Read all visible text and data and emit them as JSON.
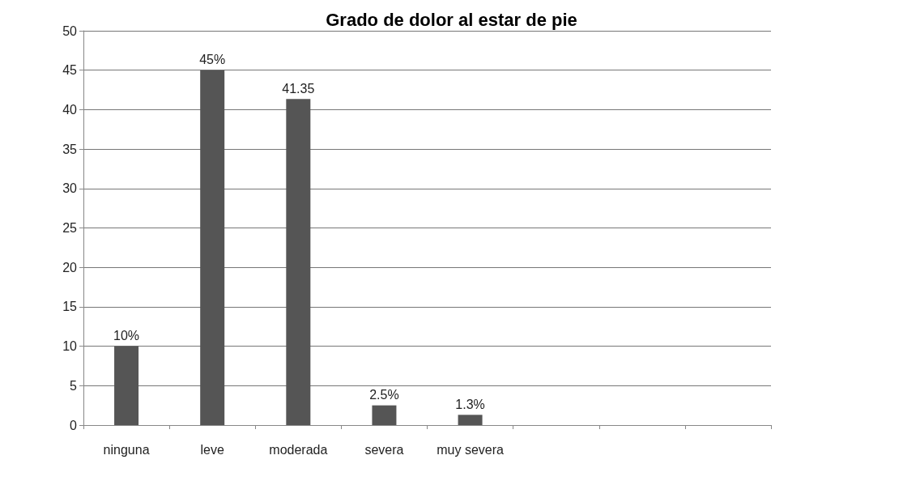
{
  "chart_data": {
    "type": "bar",
    "title": "Grado de dolor al estar de pie",
    "categories": [
      "ninguna",
      "leve",
      "moderada",
      "severa",
      "muy severa",
      null,
      null,
      null
    ],
    "values": [
      10,
      45,
      41.35,
      2.5,
      1.3,
      null,
      null,
      null
    ],
    "value_labels": [
      "10%",
      "45%",
      "41.35",
      "2.5%",
      "1.3%",
      null,
      null,
      null
    ],
    "color": "#555555",
    "ylim": [
      0,
      50
    ],
    "yticks": [
      0,
      5,
      10,
      15,
      20,
      25,
      30,
      35,
      40,
      45,
      50
    ],
    "grid": "y"
  }
}
